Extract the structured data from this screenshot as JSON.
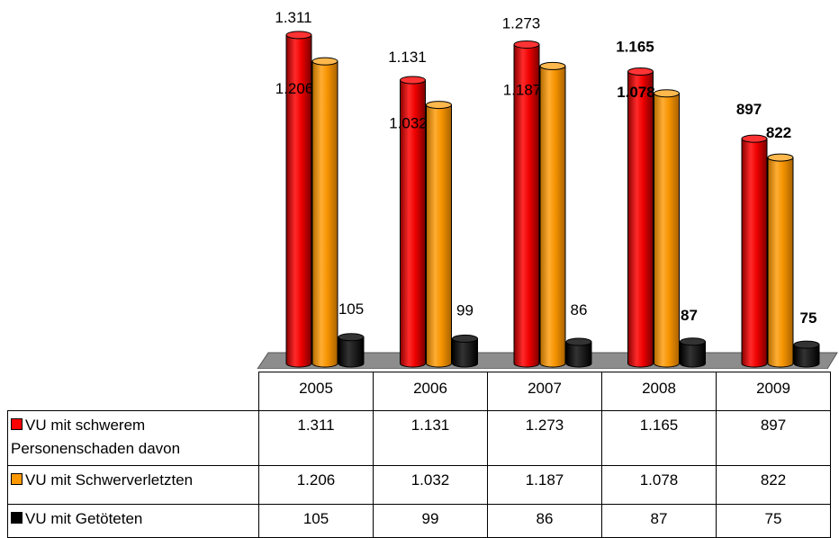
{
  "chart_data": {
    "type": "bar",
    "categories": [
      "2005",
      "2006",
      "2007",
      "2008",
      "2009"
    ],
    "series": [
      {
        "name": "VU mit schwerem Personenschaden davon",
        "name_lines": [
          "VU mit schwerem",
          "Personenschaden davon"
        ],
        "values": [
          1311,
          1131,
          1273,
          1165,
          897
        ],
        "labels": [
          "1.311",
          "1.131",
          "1.273",
          "1.165",
          "897"
        ],
        "color": "#ff0000"
      },
      {
        "name": "VU mit Schwerverletzten",
        "values": [
          1206,
          1032,
          1187,
          1078,
          822
        ],
        "labels": [
          "1.206",
          "1.032",
          "1.187",
          "1.078",
          "822"
        ],
        "color": "#ff9900"
      },
      {
        "name": "VU mit Getöteten",
        "values": [
          105,
          99,
          86,
          87,
          75
        ],
        "labels": [
          "105",
          "99",
          "86",
          "87",
          "75"
        ],
        "color": "#000000"
      }
    ],
    "bold_label_categories": [
      "2008",
      "2009"
    ],
    "ylim": [
      0,
      1400
    ],
    "grid": false,
    "legend": "data table below chart",
    "style": "3d cylinder bars"
  }
}
